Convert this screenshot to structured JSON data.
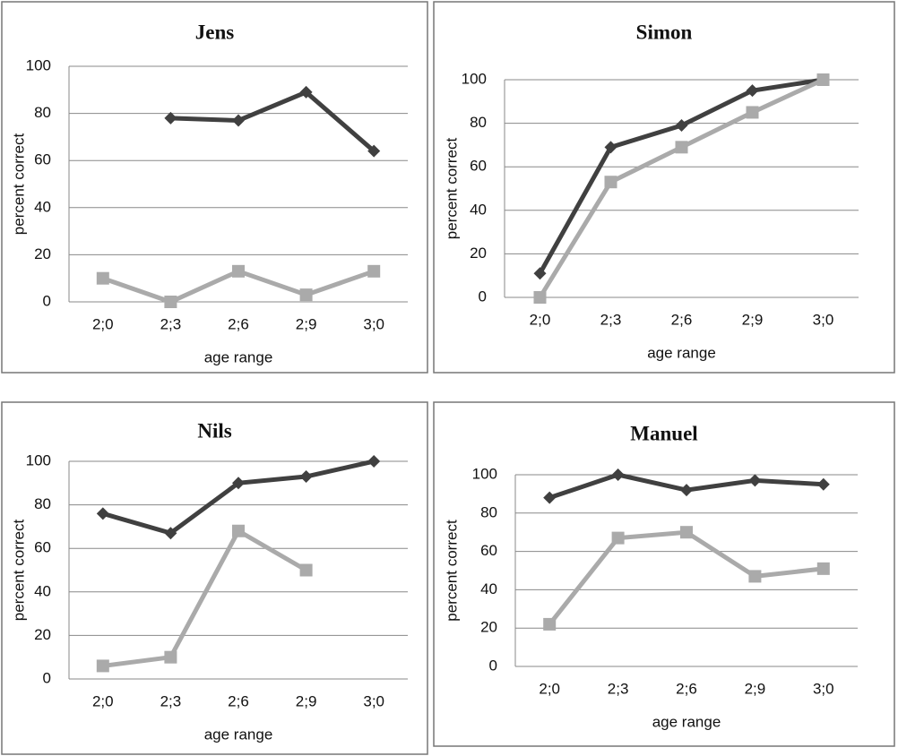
{
  "chart_data": [
    {
      "type": "line",
      "title": "Jens",
      "x_label": "age range",
      "y_label": "percent correct",
      "categories": [
        "2;0",
        "2;3",
        "2;6",
        "2;9",
        "3;0"
      ],
      "series": [
        {
          "color": "#404040",
          "marker": "diamond",
          "values": [
            null,
            78,
            77,
            89,
            64
          ]
        },
        {
          "color": "#aaaaaa",
          "marker": "square",
          "values": [
            10,
            0,
            13,
            3,
            13
          ]
        }
      ],
      "ylim": [
        0,
        100
      ],
      "yticks": [
        0,
        20,
        40,
        60,
        80,
        100
      ],
      "grid": true
    },
    {
      "type": "line",
      "title": "Simon",
      "x_label": "age range",
      "y_label": "percent correct",
      "categories": [
        "2;0",
        "2;3",
        "2;6",
        "2;9",
        "3;0"
      ],
      "series": [
        {
          "color": "#404040",
          "marker": "diamond",
          "values": [
            11,
            69,
            79,
            95,
            100
          ]
        },
        {
          "color": "#aaaaaa",
          "marker": "square",
          "values": [
            0,
            53,
            69,
            85,
            100
          ]
        }
      ],
      "ylim": [
        0,
        100
      ],
      "yticks": [
        0,
        20,
        40,
        60,
        80,
        100
      ],
      "grid": true
    },
    {
      "type": "line",
      "title": "Nils",
      "x_label": "age range",
      "y_label": "percent correct",
      "categories": [
        "2;0",
        "2;3",
        "2;6",
        "2;9",
        "3;0"
      ],
      "series": [
        {
          "color": "#404040",
          "marker": "diamond",
          "values": [
            76,
            67,
            90,
            93,
            100
          ]
        },
        {
          "color": "#aaaaaa",
          "marker": "square",
          "values": [
            6,
            10,
            68,
            50,
            null
          ]
        }
      ],
      "ylim": [
        0,
        100
      ],
      "yticks": [
        0,
        20,
        40,
        60,
        80,
        100
      ],
      "grid": true
    },
    {
      "type": "line",
      "title": "Manuel",
      "x_label": "age range",
      "y_label": "percent correct",
      "categories": [
        "2;0",
        "2;3",
        "2;6",
        "2;9",
        "3;0"
      ],
      "series": [
        {
          "color": "#404040",
          "marker": "diamond",
          "values": [
            88,
            100,
            92,
            97,
            95
          ]
        },
        {
          "color": "#aaaaaa",
          "marker": "square",
          "values": [
            22,
            67,
            70,
            47,
            51
          ]
        }
      ],
      "ylim": [
        0,
        100
      ],
      "yticks": [
        0,
        20,
        40,
        60,
        80,
        100
      ],
      "grid": true
    }
  ]
}
